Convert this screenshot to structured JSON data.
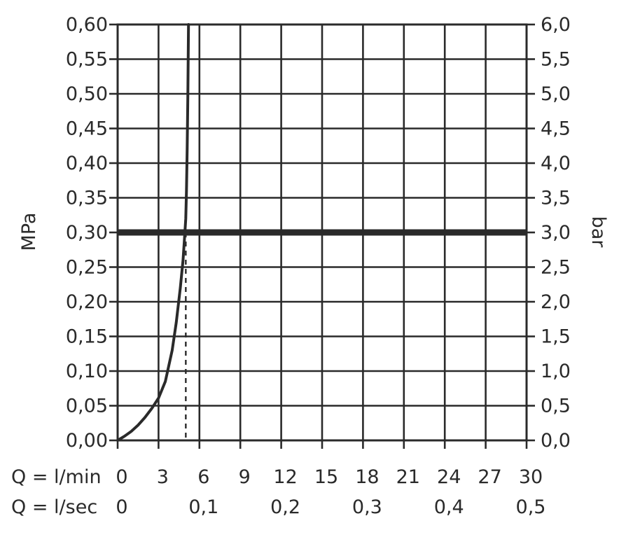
{
  "chart_data": {
    "type": "line",
    "left_axis": {
      "label": "MPa",
      "range": [
        0,
        0.6
      ],
      "ticks": [
        0,
        0.05,
        0.1,
        0.15,
        0.2,
        0.25,
        0.3,
        0.35,
        0.4,
        0.45,
        0.5,
        0.55,
        0.6
      ],
      "tick_labels": [
        "0,00",
        "0,05",
        "0,10",
        "0,15",
        "0,20",
        "0,25",
        "0,30",
        "0,35",
        "0,40",
        "0,45",
        "0,50",
        "0,55",
        "0,60"
      ]
    },
    "right_axis": {
      "label": "bar",
      "range": [
        0,
        6
      ],
      "tick_labels": [
        "0,0",
        "0,5",
        "1,0",
        "1,5",
        "2,0",
        "2,5",
        "3,0",
        "3,5",
        "4,0",
        "4,5",
        "5,0",
        "5,5",
        "6,0"
      ]
    },
    "x_axis_primary": {
      "label": "Q = l/min",
      "range": [
        0,
        30
      ],
      "ticks": [
        0,
        3,
        6,
        9,
        12,
        15,
        18,
        21,
        24,
        27,
        30
      ],
      "tick_labels": [
        "0",
        "3",
        "6",
        "9",
        "12",
        "15",
        "18",
        "21",
        "24",
        "27",
        "30"
      ]
    },
    "x_axis_secondary": {
      "label": "Q = l/sec",
      "ticks_lmin": [
        0,
        6,
        12,
        18,
        24,
        30
      ],
      "tick_labels": [
        "0",
        "0,1",
        "0,2",
        "0,3",
        "0,4",
        "0,5"
      ]
    },
    "grid": true,
    "series": [
      {
        "x": [
          0,
          0.5,
          1,
          1.5,
          2,
          2.5,
          3,
          3.5,
          4,
          4.3,
          4.6,
          4.8,
          4.9,
          5.0,
          5.05,
          5.1,
          5.15,
          5.2
        ],
        "y": [
          0,
          0.006,
          0.013,
          0.022,
          0.033,
          0.046,
          0.061,
          0.085,
          0.13,
          0.17,
          0.22,
          0.26,
          0.29,
          0.32,
          0.36,
          0.42,
          0.5,
          0.6
        ]
      }
    ],
    "reference_line": {
      "y": 0.3
    },
    "marker_line": {
      "x": 5.0
    },
    "colors": {
      "ink": "#2a2a2a"
    }
  }
}
